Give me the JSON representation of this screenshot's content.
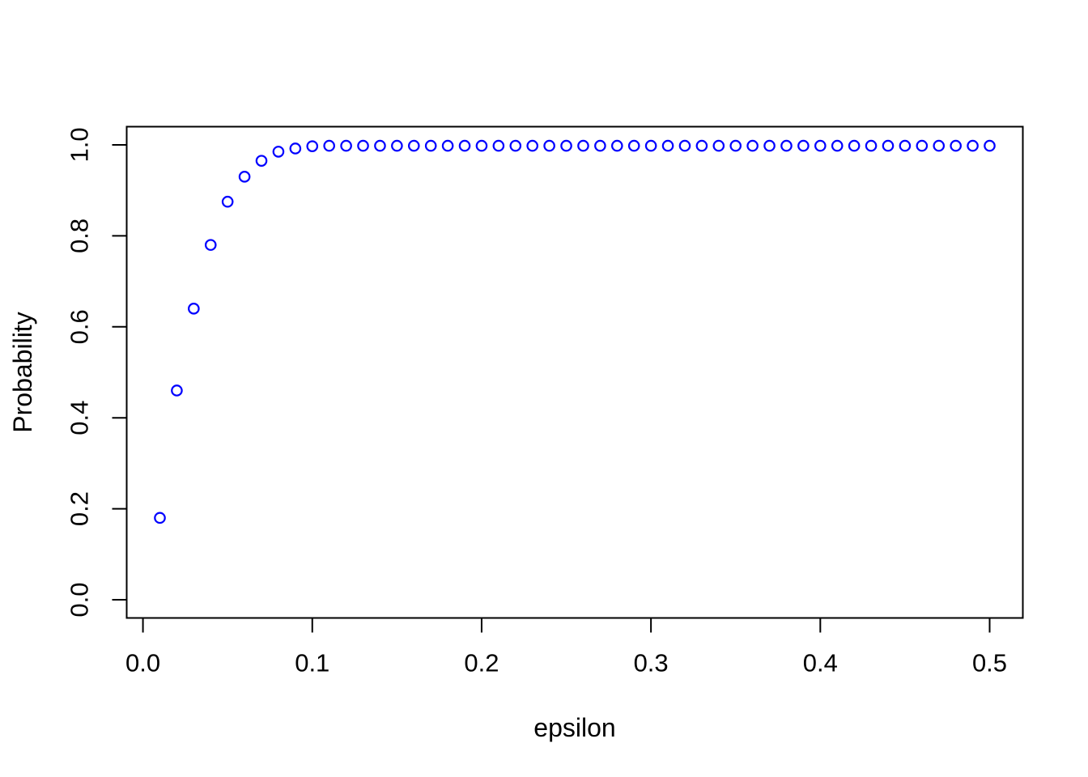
{
  "chart_data": {
    "type": "scatter",
    "xlabel": "epsilon",
    "ylabel": "Probability",
    "marker": "open-circle",
    "marker_color": "#0000FF",
    "axis_color": "#000000",
    "text_color": "#000000",
    "background": "#FFFFFF",
    "grid": false,
    "legend": "none",
    "xlim": [
      -0.0096,
      0.5196
    ],
    "ylim": [
      -0.04,
      1.04
    ],
    "x_ticks": {
      "values": [
        0.0,
        0.1,
        0.2,
        0.3,
        0.4,
        0.5
      ],
      "labels": [
        "0.0",
        "0.1",
        "0.2",
        "0.3",
        "0.4",
        "0.5"
      ]
    },
    "y_ticks": {
      "values": [
        0.0,
        0.2,
        0.4,
        0.6,
        0.8,
        1.0
      ],
      "labels": [
        "0.0",
        "0.2",
        "0.4",
        "0.6",
        "0.8",
        "1.0"
      ]
    },
    "x": [
      0.01,
      0.02,
      0.03,
      0.04,
      0.05,
      0.06,
      0.07,
      0.08,
      0.09,
      0.1,
      0.11,
      0.12,
      0.13,
      0.14,
      0.15,
      0.16,
      0.17,
      0.18,
      0.19,
      0.2,
      0.21,
      0.22,
      0.23,
      0.24,
      0.25,
      0.26,
      0.27,
      0.28,
      0.29,
      0.3,
      0.31,
      0.32,
      0.33,
      0.34,
      0.35,
      0.36,
      0.37,
      0.38,
      0.39,
      0.4,
      0.41,
      0.42,
      0.43,
      0.44,
      0.45,
      0.46,
      0.47,
      0.48,
      0.49,
      0.5
    ],
    "y": [
      0.18,
      0.46,
      0.64,
      0.78,
      0.875,
      0.93,
      0.965,
      0.985,
      0.992,
      0.997,
      0.998,
      0.998,
      0.998,
      0.998,
      0.998,
      0.998,
      0.998,
      0.998,
      0.998,
      0.998,
      0.998,
      0.998,
      0.998,
      0.998,
      0.998,
      0.998,
      0.998,
      0.998,
      0.998,
      0.998,
      0.998,
      0.998,
      0.998,
      0.998,
      0.998,
      0.998,
      0.998,
      0.998,
      0.998,
      0.998,
      0.998,
      0.998,
      0.998,
      0.998,
      0.998,
      0.998,
      0.998,
      0.998,
      0.998,
      0.998
    ]
  }
}
